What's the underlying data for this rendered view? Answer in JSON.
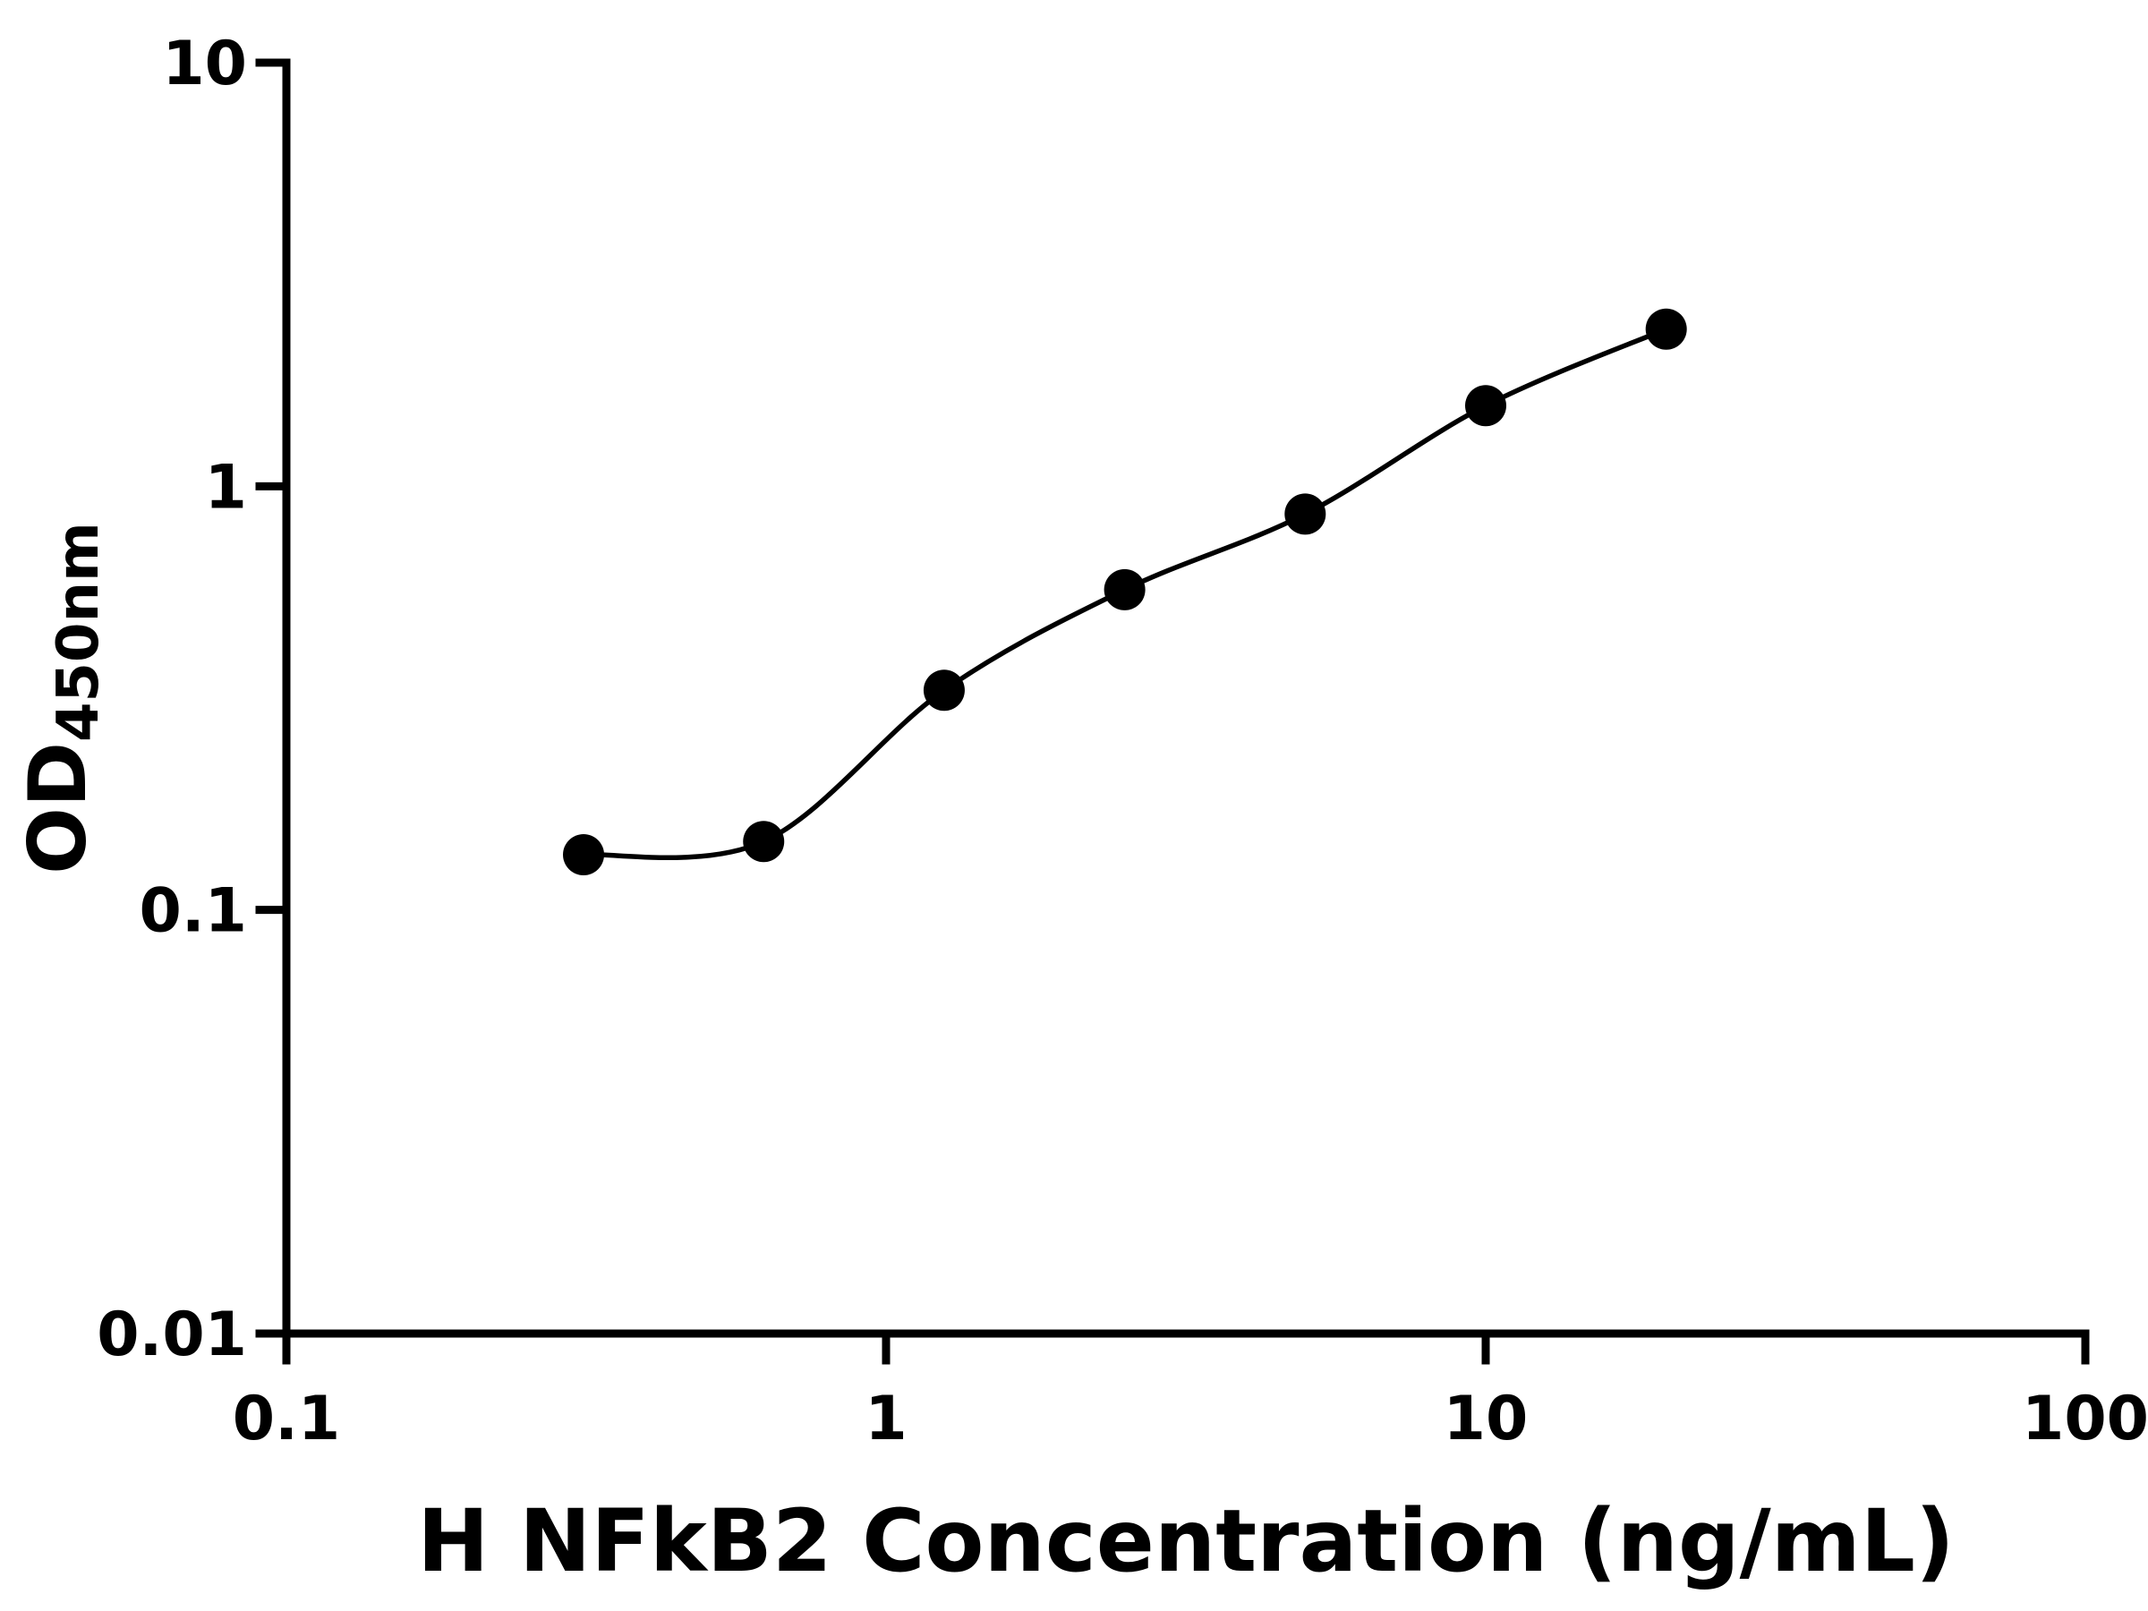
{
  "figure": {
    "background": "#ffffff",
    "foreground": "#000000"
  },
  "chart_data": {
    "type": "scatter",
    "title": "",
    "xlabel": "H NFkB2 Concentration (ng/mL)",
    "ylabel_main": "OD",
    "ylabel_sub": "450nm",
    "x_scale": "log",
    "y_scale": "log",
    "xlim": [
      0.1,
      100
    ],
    "ylim": [
      0.01,
      10
    ],
    "x_ticks": {
      "values": [
        0.1,
        1,
        10,
        100
      ],
      "labels": [
        "0.1",
        "1",
        "10",
        "100"
      ]
    },
    "y_ticks": {
      "values": [
        0.01,
        0.1,
        1,
        10
      ],
      "labels": [
        "0.01",
        "0.1",
        "1",
        "10"
      ]
    },
    "grid": false,
    "legend": null,
    "series": [
      {
        "marker": "circle",
        "color": "#000000",
        "line": "smooth-fit",
        "points": [
          {
            "x": 0.313,
            "y": 0.135
          },
          {
            "x": 0.625,
            "y": 0.145
          },
          {
            "x": 1.25,
            "y": 0.33
          },
          {
            "x": 2.5,
            "y": 0.57
          },
          {
            "x": 5,
            "y": 0.86
          },
          {
            "x": 10,
            "y": 1.55
          },
          {
            "x": 20,
            "y": 2.35
          }
        ]
      }
    ]
  }
}
